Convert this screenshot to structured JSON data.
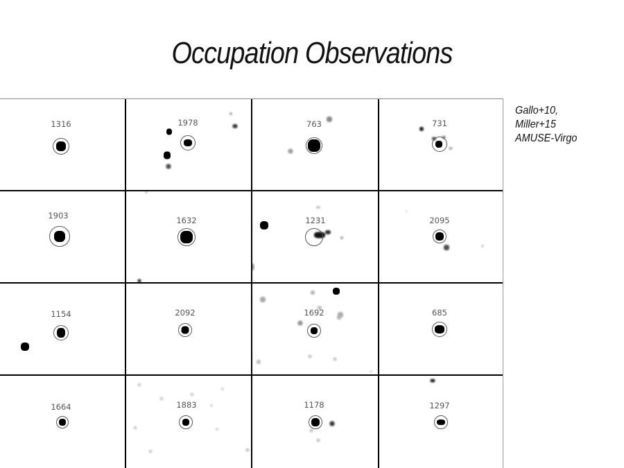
{
  "slide": {
    "title": "Occupation Observations"
  },
  "credit": {
    "lines": [
      "Gallo+10,",
      "Miller+15",
      "AMUSE-Virgo"
    ]
  },
  "grid": {
    "rows": 4,
    "cols": 4,
    "cells": [
      {
        "id": "1316"
      },
      {
        "id": "1978"
      },
      {
        "id": "763"
      },
      {
        "id": "731"
      },
      {
        "id": "1903"
      },
      {
        "id": "1632"
      },
      {
        "id": "1231"
      },
      {
        "id": "2095"
      },
      {
        "id": "1154"
      },
      {
        "id": "2092"
      },
      {
        "id": "1692"
      },
      {
        "id": "685"
      },
      {
        "id": "1664"
      },
      {
        "id": "1883"
      },
      {
        "id": "1178"
      },
      {
        "id": "1297"
      }
    ]
  }
}
